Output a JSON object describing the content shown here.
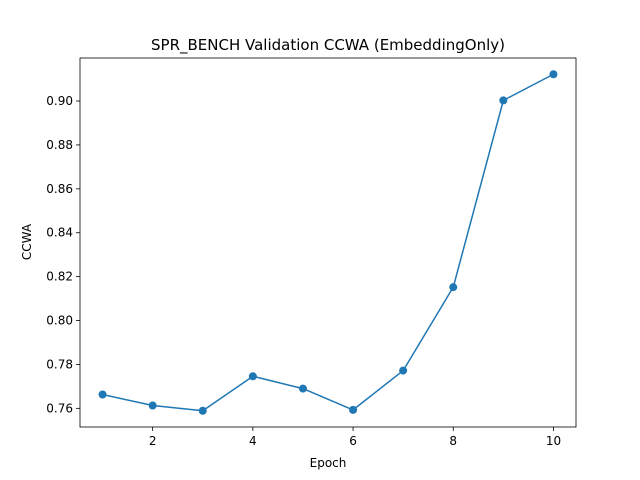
{
  "chart_data": {
    "type": "line",
    "title": "SPR_BENCH Validation CCWA (EmbeddingOnly)",
    "xlabel": "Epoch",
    "ylabel": "CCWA",
    "xlim": [
      0.55,
      10.45
    ],
    "ylim": [
      0.7515,
      0.9196
    ],
    "xticks": [
      2,
      4,
      6,
      8,
      10
    ],
    "xtick_labels": [
      "2",
      "4",
      "6",
      "8",
      "10"
    ],
    "yticks": [
      0.76,
      0.78,
      0.8,
      0.82,
      0.84,
      0.86,
      0.88,
      0.9
    ],
    "ytick_labels": [
      "0.76",
      "0.78",
      "0.80",
      "0.82",
      "0.84",
      "0.86",
      "0.88",
      "0.90"
    ],
    "grid": false,
    "legend": "none",
    "series": [
      {
        "color": "#1f77b4",
        "marker": "circle",
        "x": [
          1,
          2,
          3,
          4,
          5,
          6,
          7,
          8,
          9,
          10
        ],
        "y": [
          0.7663,
          0.7613,
          0.7589,
          0.7746,
          0.769,
          0.7593,
          0.7772,
          0.8152,
          0.9003,
          0.9122
        ]
      }
    ]
  }
}
